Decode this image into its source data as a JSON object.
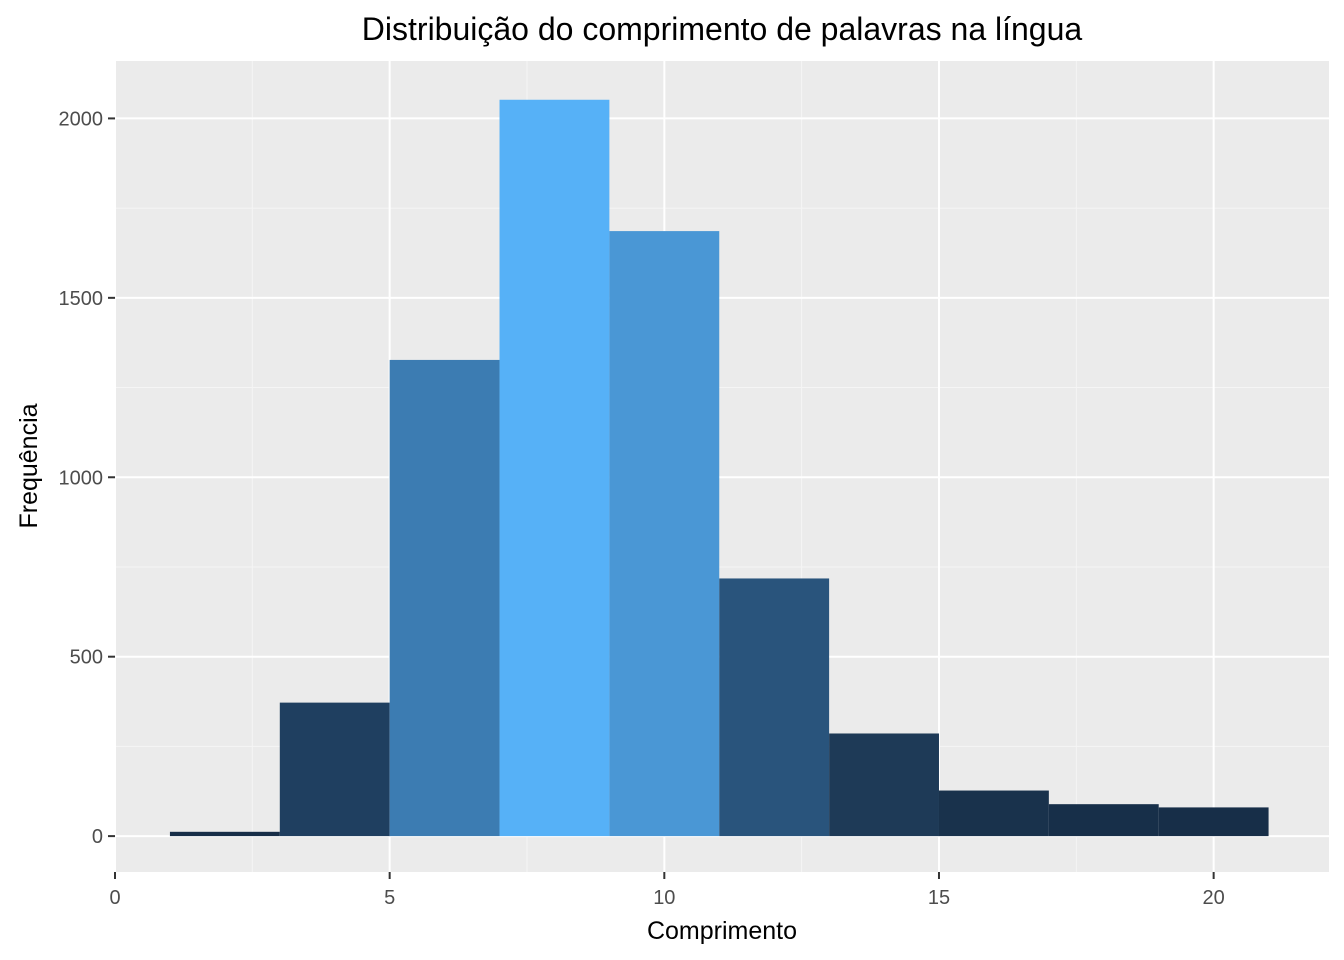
{
  "chart_data": {
    "type": "bar",
    "title": "Distribuição do comprimento de palavras na língua",
    "xlabel": "Comprimento",
    "ylabel": "Frequência",
    "xlim": [
      0,
      22.1
    ],
    "ylim": [
      -100,
      2160
    ],
    "x_ticks": [
      0,
      5,
      10,
      15,
      20
    ],
    "y_ticks": [
      0,
      500,
      1000,
      1500,
      2000
    ],
    "x_tick_labels": [
      "0",
      "5",
      "10",
      "15",
      "20"
    ],
    "y_tick_labels": [
      "0",
      "500",
      "1000",
      "1500",
      "2000"
    ],
    "grid": true,
    "legend": "none",
    "bins": [
      {
        "x_start": 1,
        "x_end": 3,
        "value": 12,
        "color": "#172e48"
      },
      {
        "x_start": 3,
        "x_end": 5,
        "value": 372,
        "color": "#1f3f60"
      },
      {
        "x_start": 5,
        "x_end": 7,
        "value": 1327,
        "color": "#3c7cb2"
      },
      {
        "x_start": 7,
        "x_end": 9,
        "value": 2052,
        "color": "#56b1f7"
      },
      {
        "x_start": 9,
        "x_end": 11,
        "value": 1686,
        "color": "#4a97d5"
      },
      {
        "x_start": 11,
        "x_end": 13,
        "value": 718,
        "color": "#29547c"
      },
      {
        "x_start": 13,
        "x_end": 15,
        "value": 286,
        "color": "#1e3a57"
      },
      {
        "x_start": 15,
        "x_end": 17,
        "value": 127,
        "color": "#19324c"
      },
      {
        "x_start": 17,
        "x_end": 19,
        "value": 89,
        "color": "#172f49"
      },
      {
        "x_start": 19,
        "x_end": 21,
        "value": 80,
        "color": "#172e48"
      }
    ],
    "colors": {
      "panel_background": "#ebebeb",
      "grid_major": "#ffffff",
      "grid_minor": "#f5f5f5",
      "tick": "#333333"
    }
  }
}
